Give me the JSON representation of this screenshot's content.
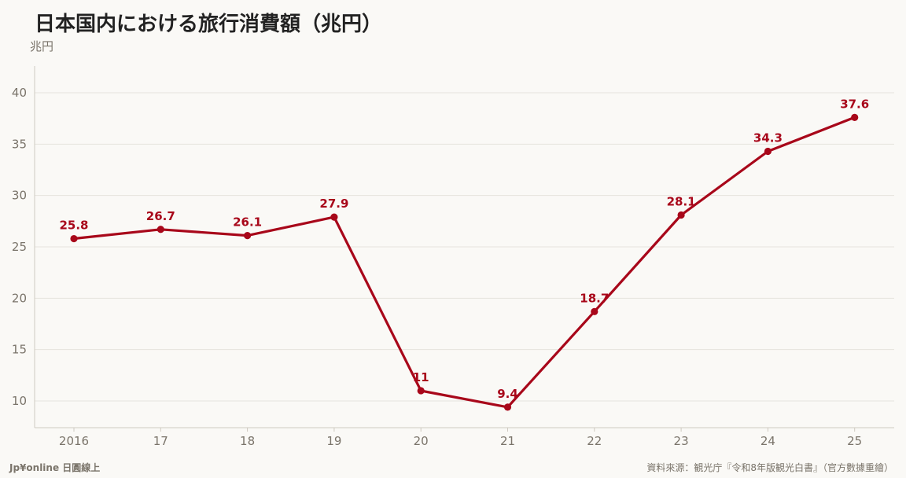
{
  "title": "日本国内における旅行消費額（兆円）",
  "unit_label": "兆円",
  "footer": {
    "brand": "Jp¥online 日圓線上",
    "source": "資料來源：観光庁『令和8年版観光白書』（官方數據重繪）"
  },
  "colors": {
    "line": "#a8071a",
    "background": "#faf9f6",
    "grid": "#e6e3dd",
    "axis_text": "#7a746a"
  },
  "chart_data": {
    "type": "line",
    "title": "日本国内における旅行消費額（兆円）",
    "ylabel": "兆円",
    "xlabel": "",
    "categories": [
      "2016",
      "17",
      "18",
      "19",
      "20",
      "21",
      "22",
      "23",
      "24",
      "25"
    ],
    "series": [
      {
        "values": [
          25.8,
          26.7,
          26.1,
          27.9,
          11,
          9.4,
          18.7,
          28.1,
          34.3,
          37.6
        ]
      }
    ],
    "data_labels": [
      "25.8",
      "26.7",
      "26.1",
      "27.9",
      "11",
      "9.4",
      "18.7",
      "28.1",
      "34.3",
      "37.6"
    ],
    "yticks": [
      10,
      15,
      20,
      25,
      30,
      35,
      40
    ],
    "ylim": [
      7.4,
      42.6
    ],
    "grid": "horizontal",
    "legend": "none"
  }
}
